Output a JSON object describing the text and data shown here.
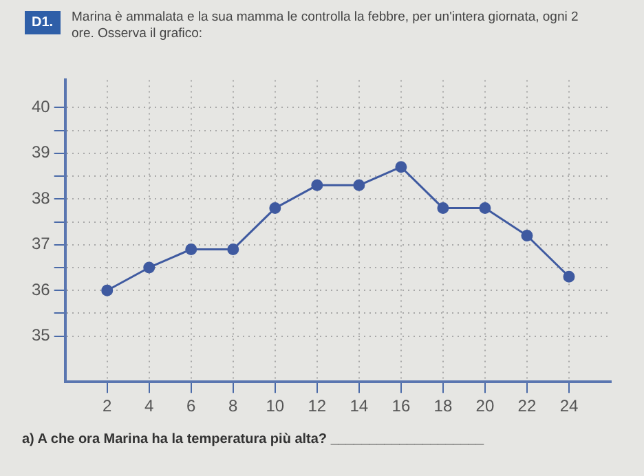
{
  "chart_data": {
    "type": "line",
    "title": "Marina è ammalata e la sua mamma le controlla la febbre, per un'intera giornata, ogni 2 ore. Osserva il grafico:",
    "annotations": [
      "D1.",
      "a) A che ora Marina ha la temperatura più alta? ____________________"
    ],
    "x": [
      2,
      4,
      6,
      8,
      10,
      12,
      14,
      16,
      18,
      20,
      22,
      24
    ],
    "series": [
      {
        "color": "#3f5aa0",
        "values": [
          36,
          36.5,
          36.9,
          36.9,
          37.8,
          38.3,
          38.3,
          38.7,
          37.8,
          37.8,
          37.2,
          36.3
        ]
      }
    ],
    "xlim": [
      0,
      26
    ],
    "xticks": [
      2,
      4,
      6,
      8,
      10,
      12,
      14,
      16,
      18,
      20,
      22,
      24
    ],
    "ylim": [
      34,
      40.6
    ],
    "yticks": [
      35,
      {
        "value": 35.5,
        "label": null
      },
      36,
      {
        "value": 36.5,
        "label": null
      },
      37,
      {
        "value": 37.5,
        "label": null
      },
      38,
      {
        "value": 38.5,
        "label": null
      },
      39,
      {
        "value": 39.5,
        "label": null
      },
      40
    ],
    "grid": true,
    "marker": "circle",
    "line_style": "solid",
    "legend": false
  }
}
